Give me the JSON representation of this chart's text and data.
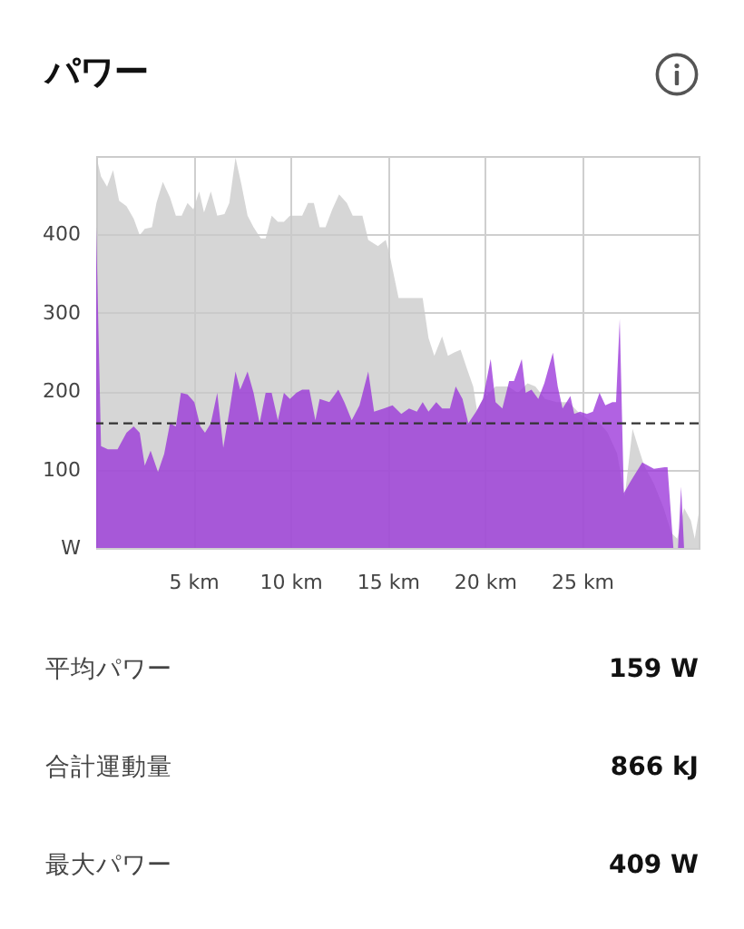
{
  "chart_data": {
    "type": "area",
    "title": "パワー",
    "xlim": [
      0,
      31
    ],
    "xticks": [
      {
        "value": 5,
        "label": "5 km"
      },
      {
        "value": 10,
        "label": "10 km"
      },
      {
        "value": 15,
        "label": "15 km"
      },
      {
        "value": 20,
        "label": "20 km"
      },
      {
        "value": 25,
        "label": "25 km"
      }
    ],
    "ylim": [
      0,
      500
    ],
    "yticks": [
      {
        "value": 0,
        "label": "W"
      },
      100,
      200,
      300,
      400
    ],
    "grid": true,
    "series": [
      {
        "color": "#d6d6d6",
        "x": [
          0,
          0.25,
          0.56,
          0.87,
          1.18,
          1.56,
          1.93,
          2.24,
          2.5,
          2.87,
          3.1,
          3.43,
          3.8,
          4.1,
          4.4,
          4.7,
          5.0,
          5.3,
          5.55,
          5.9,
          6.23,
          6.6,
          6.85,
          7.17,
          7.48,
          7.79,
          8.1,
          8.47,
          8.72,
          9.03,
          9.35,
          9.66,
          9.97,
          10.6,
          10.9,
          11.2,
          11.5,
          11.8,
          12.15,
          12.5,
          12.9,
          13.2,
          13.7,
          14.0,
          14.5,
          14.9,
          15.1,
          15.56,
          16.2,
          16.8,
          17.1,
          17.4,
          17.8,
          18.1,
          18.4,
          18.75,
          19.06,
          19.4,
          19.6,
          19.9,
          20.55,
          21.2,
          21.7,
          22.2,
          22.6,
          23.1,
          23.7,
          24.3,
          24.9,
          25.4,
          25.9,
          26.3,
          26.8,
          27.2,
          27.6,
          27.9,
          28.2,
          28.7,
          29.2,
          29.6,
          29.9,
          30.25,
          30.6,
          30.8,
          31
        ],
        "values": [
          500,
          474,
          461,
          482,
          443,
          436,
          420,
          399,
          407,
          409,
          440,
          467,
          447,
          424,
          424,
          440,
          432,
          455,
          428,
          455,
          424,
          426,
          440,
          498,
          463,
          424,
          409,
          395,
          395,
          424,
          416,
          416,
          424,
          424,
          440,
          440,
          409,
          409,
          432,
          451,
          440,
          424,
          424,
          393,
          385,
          393,
          374,
          319,
          319,
          319,
          268,
          245,
          270,
          245,
          249,
          253,
          230,
          206,
          175,
          190,
          206,
          206,
          198,
          210,
          206,
          190,
          186,
          186,
          171,
          163,
          159,
          148,
          121,
          66,
          152,
          128,
          105,
          82,
          51,
          19,
          12,
          51,
          35,
          12,
          43
        ]
      },
      {
        "color": "#b162e2",
        "x": [
          0,
          0.25,
          0.6,
          1.1,
          1.56,
          1.93,
          2.24,
          2.5,
          2.8,
          3.18,
          3.5,
          3.8,
          4.1,
          4.36,
          4.7,
          5.05,
          5.36,
          5.6,
          5.9,
          6.23,
          6.54,
          6.85,
          7.17,
          7.41,
          7.79,
          8.1,
          8.41,
          8.72,
          9.03,
          9.35,
          9.66,
          9.97,
          10.3,
          10.6,
          10.97,
          11.28,
          11.5,
          12.0,
          12.46,
          12.77,
          13.15,
          13.55,
          14.0,
          14.3,
          14.8,
          15.25,
          15.7,
          16.1,
          16.5,
          16.8,
          17.1,
          17.5,
          17.8,
          18.2,
          18.5,
          18.85,
          19.15,
          19.55,
          19.9,
          20.3,
          20.55,
          20.9,
          21.25,
          21.5,
          21.9,
          22.1,
          22.4,
          22.75,
          23.06,
          23.5,
          23.75,
          24.0,
          24.4,
          24.6,
          24.9,
          25.25,
          25.56,
          25.9,
          26.2,
          26.56,
          26.75,
          26.94,
          27.15,
          27.5,
          28.1,
          28.7,
          29.25,
          29.4,
          29.7,
          29.94,
          30.1,
          30.25,
          31
        ],
        "values": [
          409,
          130,
          126,
          126,
          147,
          155,
          147,
          105,
          124,
          97,
          120,
          159,
          155,
          198,
          196,
          186,
          155,
          147,
          159,
          198,
          128,
          174,
          225,
          202,
          225,
          198,
          159,
          198,
          198,
          163,
          198,
          190,
          198,
          202,
          202,
          163,
          190,
          186,
          202,
          186,
          163,
          182,
          225,
          174,
          178,
          182,
          171,
          178,
          174,
          186,
          174,
          186,
          178,
          178,
          206,
          190,
          159,
          174,
          190,
          241,
          186,
          178,
          213,
          213,
          241,
          198,
          202,
          190,
          210,
          249,
          206,
          178,
          194,
          171,
          174,
          171,
          174,
          198,
          182,
          186,
          186,
          292,
          70,
          85,
          109,
          101,
          103,
          103,
          0,
          0,
          78,
          0,
          0
        ]
      }
    ],
    "ref_lines": [
      {
        "axis": "y",
        "value": 159,
        "color": "#333333",
        "line_style": "dashed"
      }
    ],
    "annotations": [
      "平均パワー",
      "159 W",
      "合計運動量",
      "866 kJ",
      "最大パワー",
      "409 W"
    ]
  }
}
